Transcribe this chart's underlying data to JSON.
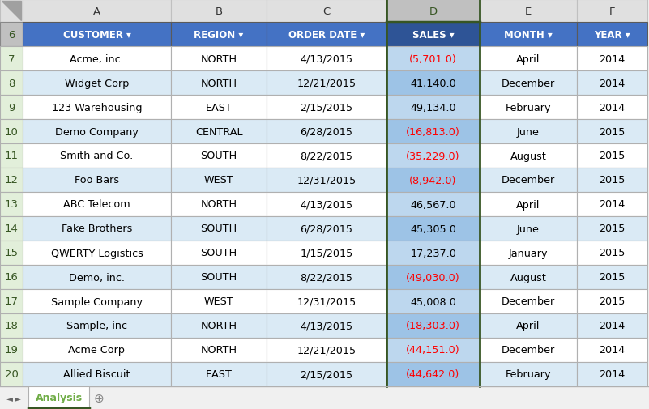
{
  "col_headers": [
    "A",
    "B",
    "C",
    "D",
    "E",
    "F"
  ],
  "col_labels": [
    "CUSTOMER",
    "REGION",
    "ORDER DATE",
    "SALES",
    "MONTH",
    "YEAR"
  ],
  "row_numbers": [
    6,
    7,
    8,
    9,
    10,
    11,
    12,
    13,
    14,
    15,
    16,
    17,
    18,
    19,
    20
  ],
  "data_row_numbers": [
    7,
    8,
    9,
    10,
    11,
    12,
    13,
    14,
    15,
    16,
    17,
    18,
    19,
    20
  ],
  "rows": [
    [
      "Acme, inc.",
      "NORTH",
      "4/13/2015",
      "(5,701.0)",
      "April",
      "2014"
    ],
    [
      "Widget Corp",
      "NORTH",
      "12/21/2015",
      "41,140.0",
      "December",
      "2014"
    ],
    [
      "123 Warehousing",
      "EAST",
      "2/15/2015",
      "49,134.0",
      "February",
      "2014"
    ],
    [
      "Demo Company",
      "CENTRAL",
      "6/28/2015",
      "(16,813.0)",
      "June",
      "2015"
    ],
    [
      "Smith and Co.",
      "SOUTH",
      "8/22/2015",
      "(35,229.0)",
      "August",
      "2015"
    ],
    [
      "Foo Bars",
      "WEST",
      "12/31/2015",
      "(8,942.0)",
      "December",
      "2015"
    ],
    [
      "ABC Telecom",
      "NORTH",
      "4/13/2015",
      "46,567.0",
      "April",
      "2014"
    ],
    [
      "Fake Brothers",
      "SOUTH",
      "6/28/2015",
      "45,305.0",
      "June",
      "2015"
    ],
    [
      "QWERTY Logistics",
      "SOUTH",
      "1/15/2015",
      "17,237.0",
      "January",
      "2015"
    ],
    [
      "Demo, inc.",
      "SOUTH",
      "8/22/2015",
      "(49,030.0)",
      "August",
      "2015"
    ],
    [
      "Sample Company",
      "WEST",
      "12/31/2015",
      "45,008.0",
      "December",
      "2015"
    ],
    [
      "Sample, inc",
      "NORTH",
      "4/13/2015",
      "(18,303.0)",
      "April",
      "2014"
    ],
    [
      "Acme Corp",
      "NORTH",
      "12/21/2015",
      "(44,151.0)",
      "December",
      "2014"
    ],
    [
      "Allied Biscuit",
      "EAST",
      "2/15/2015",
      "(44,642.0)",
      "February",
      "2014"
    ]
  ],
  "sales_negative": [
    true,
    false,
    false,
    true,
    true,
    true,
    false,
    false,
    false,
    true,
    false,
    true,
    true,
    true
  ],
  "header_bg": "#4472C4",
  "header_text": "#FFFFFF",
  "row_bg_even": "#FFFFFF",
  "row_bg_odd": "#DAEAF5",
  "col_d_bg_even": "#BDD7EE",
  "col_d_bg_odd": "#9DC3E6",
  "col_d_header_bg": "#2E5496",
  "col_d_letter_bg": "#C0C0C0",
  "row_num_bg": "#E2EFDA",
  "row_num_text": "#375623",
  "col_letter_bg": "#E0E0E0",
  "col_letter_text": "#333333",
  "col_d_letter_text": "#375623",
  "corner_bg": "#E0E0E0",
  "grid_color": "#B0B0B0",
  "negative_color": "#FF0000",
  "positive_color": "#000000",
  "tab_text": "#70AD47",
  "tab_label": "Analysis",
  "tab_bg": "#FFFFFF",
  "fig_bg": "#F0F0F0",
  "green_border": "#375623",
  "scroll_arrow_color": "#666666"
}
